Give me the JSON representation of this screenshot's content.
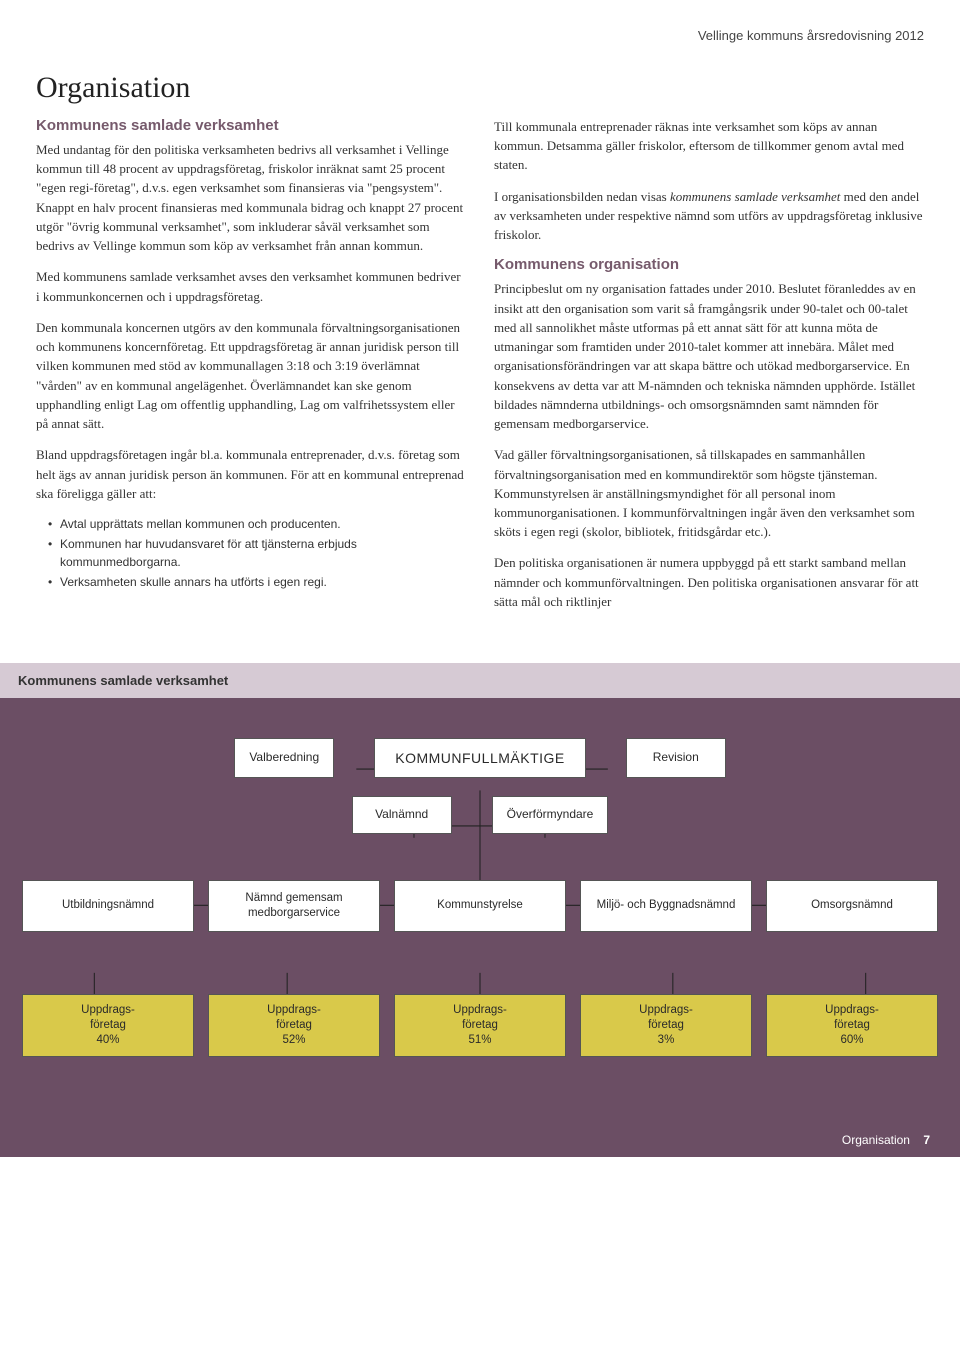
{
  "header": "Vellinge kommuns årsredovisning 2012",
  "title": "Organisation",
  "left": {
    "h1": "Kommunens samlade verksamhet",
    "p1": "Med undantag för den politiska verksamheten bedrivs all verksamhet i Vellinge kommun till 48 procent av uppdragsföretag, friskolor inräknat samt 25 procent \"egen regi-företag\", d.v.s. egen verksamhet som finansieras via \"pengsystem\". Knappt en halv procent finansieras med kommunala bidrag och knappt 27 procent utgör \"övrig kommunal verksamhet\", som inkluderar såväl verksamhet som bedrivs av Vellinge kommun som köp av verksamhet från annan kommun.",
    "p2": "Med kommunens samlade verksamhet avses den verksamhet kommunen bedriver i kommunkoncernen och i uppdragsföretag.",
    "p3": "Den kommunala koncernen utgörs av den kommunala förvaltningsorganisationen och kommunens koncernföretag. Ett uppdragsföretag är annan juridisk person till vilken kommunen med stöd av kommunallagen 3:18 och 3:19 överlämnat \"vården\" av en kommunal angelägenhet. Överlämnandet kan ske genom upphandling enligt Lag om offentlig upphandling, Lag om valfrihetssystem eller på annat sätt.",
    "p4": "Bland uppdragsföretagen ingår bl.a. kommunala entreprenader, d.v.s. företag som helt ägs av annan juridisk person än kommunen. För att en kommunal entreprenad ska föreligga gäller att:",
    "b1": "Avtal upprättats mellan kommunen och producenten.",
    "b2": "Kommunen har huvudansvaret för att tjänsterna erbjuds kommunmedborgarna.",
    "b3": "Verksamheten skulle annars ha utförts i egen regi."
  },
  "right": {
    "p1": "Till kommunala entreprenader räknas inte verksamhet som köps av annan kommun. Detsamma gäller friskolor, eftersom de tillkommer genom avtal med staten.",
    "p2a": "I organisationsbilden nedan visas ",
    "p2i": "kommunens samlade verksamhet",
    "p2b": " med den andel av verksamheten under respektive nämnd som utförs av uppdragsföretag inklusive friskolor.",
    "h2": "Kommunens organisation",
    "p3": "Principbeslut om ny organisation fattades under 2010. Beslutet föranleddes av en insikt att den organisation som varit så framgångsrik under 90-talet och 00-talet med all sannolikhet måste utformas på ett annat sätt för att kunna möta de utmaningar som framtiden under 2010-talet kommer att innebära. Målet med organisationsförändringen var att skapa bättre och utökad medborgarservice. En konsekvens av detta var att M-nämnden och tekniska nämnden upphörde. Istället bildades nämnderna utbildnings- och omsorgsnämnden samt nämnden för gemensam medborgarservice.",
    "p4": "Vad gäller förvaltningsorganisationen, så tillskapades en sammanhållen förvaltningsorganisation med en kommundirektör som högste tjänsteman. Kommunstyrelsen är anställningsmyndighet för all personal inom kommunorganisationen. I kommunförvaltningen ingår även den verksamhet som sköts i egen regi (skolor, bibliotek, fritidsgårdar etc.).",
    "p5": "Den politiska organisationen är numera uppbyggd på ett starkt samband mellan nämnder och kommunförvaltningen. Den politiska organisationen ansvarar för att sätta mål och riktlinjer"
  },
  "org": {
    "title": "Kommunens samlade verksamhet",
    "row1": {
      "a": "Valberedning",
      "b": "KOMMUNFULLMÄKTIGE",
      "c": "Revision"
    },
    "row2": {
      "a": "Valnämnd",
      "b": "Överförmyndare"
    },
    "row3": {
      "a": "Utbildningsnämnd",
      "b": "Nämnd gemensam medborgarservice",
      "c": "Kommunstyrelse",
      "d": "Miljö- och Byggnadsnämnd",
      "e": "Omsorgsnämnd"
    },
    "row4": {
      "a": "Uppdrags-\nföretag\n40%",
      "b": "Uppdrags-\nföretag\n52%",
      "c": "Uppdrags-\nföretag\n51%",
      "d": "Uppdrags-\nföretag\n3%",
      "e": "Uppdrags-\nföretag\n60%"
    },
    "colors": {
      "chart_bg": "#6b4e64",
      "title_bg": "#d6cad4",
      "box_bg": "#ffffff",
      "box_yellow": "#d9c94a",
      "line": "#222222"
    }
  },
  "footer": {
    "label": "Organisation",
    "page": "7"
  }
}
